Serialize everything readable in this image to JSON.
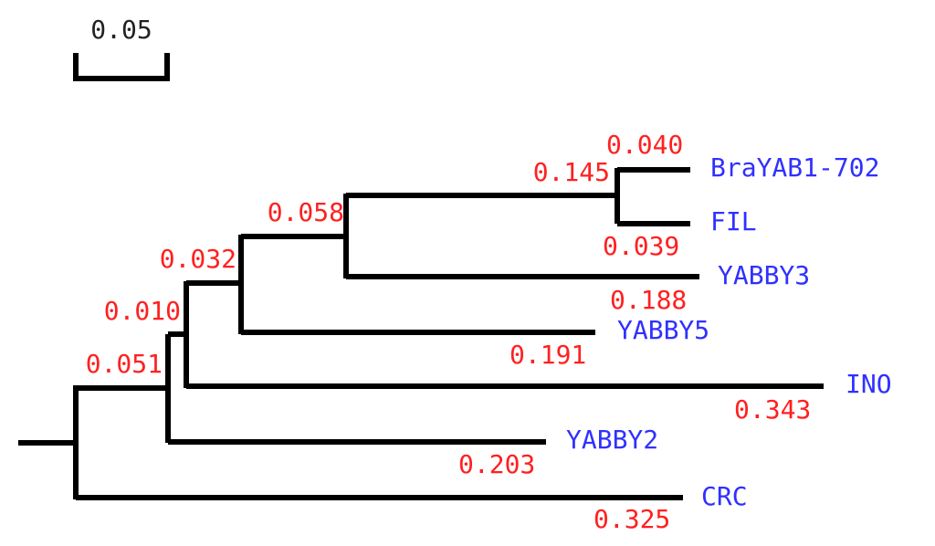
{
  "scale_bar": {
    "label": "0.05",
    "value": 0.05
  },
  "colors": {
    "branch": "#000000",
    "branch_length": "#ff2020",
    "taxon": "#3030ff",
    "scale": "#222222"
  },
  "tree": {
    "taxa": [
      {
        "name": "BraYAB1-702",
        "branch_length": "0.040"
      },
      {
        "name": "FIL",
        "branch_length": "0.039"
      },
      {
        "name": "YABBY3",
        "branch_length": "0.188"
      },
      {
        "name": "YABBY5",
        "branch_length": "0.191"
      },
      {
        "name": "INO",
        "branch_length": "0.343"
      },
      {
        "name": "YABBY2",
        "branch_length": "0.203"
      },
      {
        "name": "CRC",
        "branch_length": "0.325"
      }
    ],
    "internal_branches": [
      {
        "clade": "BraYAB1-702,FIL",
        "branch_length": "0.145"
      },
      {
        "clade": "BraYAB1-702,FIL,YABBY3",
        "branch_length": "0.058"
      },
      {
        "clade": "BraYAB1-702,FIL,YABBY3,YABBY5",
        "branch_length": "0.032"
      },
      {
        "clade": "BraYAB1-702,FIL,YABBY3,YABBY5,INO",
        "branch_length": "0.010"
      },
      {
        "clade": "BraYAB1-702,FIL,YABBY3,YABBY5,INO,YABBY2",
        "branch_length": "0.051"
      }
    ]
  }
}
